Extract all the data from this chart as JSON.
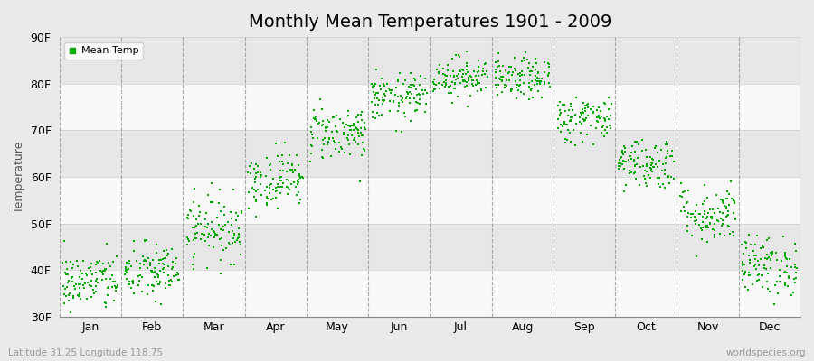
{
  "title": "Monthly Mean Temperatures 1901 - 2009",
  "ylabel": "Temperature",
  "bottom_left_label": "Latitude 31.25 Longitude 118.75",
  "bottom_right_label": "worldspecies.org",
  "legend_label": "Mean Temp",
  "ylim": [
    30,
    90
  ],
  "yticks": [
    30,
    40,
    50,
    60,
    70,
    80,
    90
  ],
  "ytick_labels": [
    "30F",
    "40F",
    "50F",
    "60F",
    "70F",
    "80F",
    "90F"
  ],
  "months": [
    "Jan",
    "Feb",
    "Mar",
    "Apr",
    "May",
    "Jun",
    "Jul",
    "Aug",
    "Sep",
    "Oct",
    "Nov",
    "Dec"
  ],
  "monthly_mean_F": [
    37.5,
    39.5,
    49.0,
    59.5,
    69.5,
    77.0,
    81.5,
    81.0,
    72.5,
    63.0,
    52.0,
    41.0
  ],
  "monthly_std_F": [
    3.2,
    3.2,
    3.5,
    3.0,
    3.0,
    2.5,
    2.2,
    2.2,
    2.5,
    2.8,
    3.2,
    3.2
  ],
  "n_years": 109,
  "dot_color": "#00AA00",
  "dot_size": 3,
  "bg_color": "#EAEAEA",
  "plot_bg_color": "#EFEFEF",
  "alt_band_color": "#E0E0E0",
  "grid_color": "#888888",
  "title_fontsize": 14,
  "label_fontsize": 9,
  "tick_fontsize": 9
}
